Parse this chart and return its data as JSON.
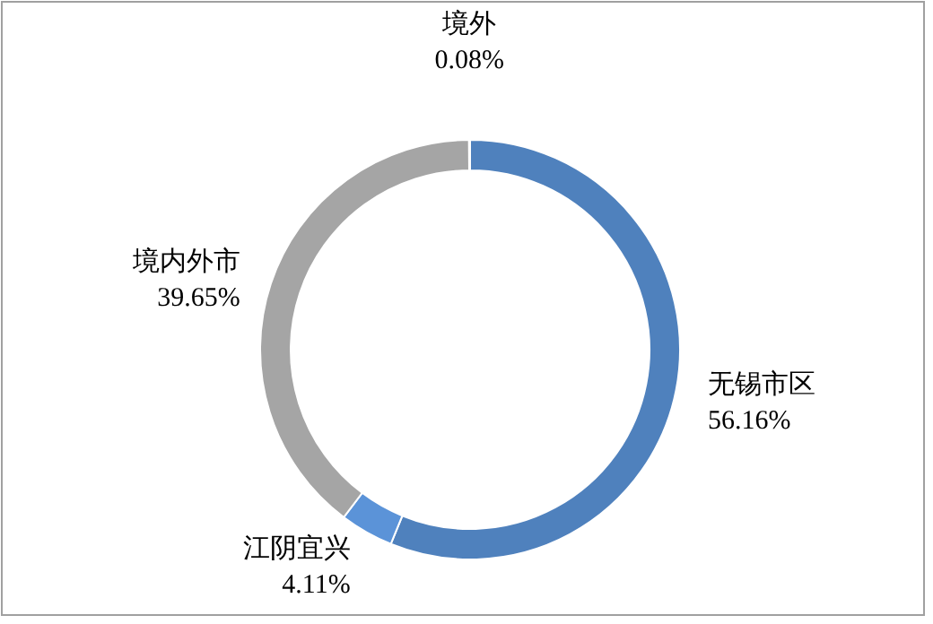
{
  "chart_data": {
    "type": "donut",
    "categories": [
      "无锡市区",
      "江阴宜兴",
      "境内外市",
      "境外"
    ],
    "values": [
      56.16,
      4.11,
      39.65,
      0.08
    ],
    "colors": [
      "#4f81bd",
      "#5b93d8",
      "#a5a5a5",
      "#2c4d75"
    ],
    "value_labels": [
      "56.16%",
      "4.11%",
      "39.65%",
      "0.08%"
    ]
  }
}
